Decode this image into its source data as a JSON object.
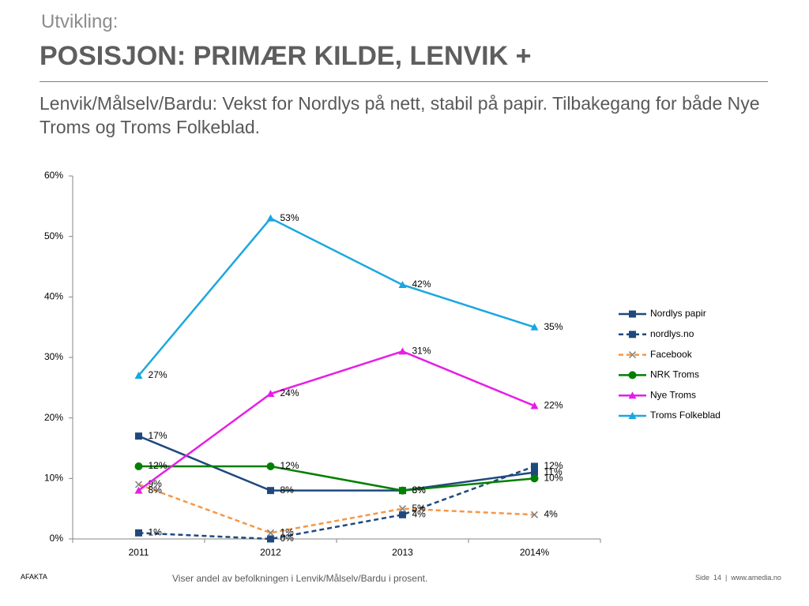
{
  "header": {
    "kicker": "Utvikling:",
    "title": "POSISJON: PRIMÆR KILDE, LENVIK +",
    "subtitle": "Lenvik/Målselv/Bardu: Vekst for Nordlys på nett, stabil på papir. Tilbakegang for både Nye Troms og Troms Folkeblad."
  },
  "chart_data": {
    "type": "line",
    "categories": [
      "2011",
      "2012",
      "2013",
      "2014%"
    ],
    "ylim": [
      0,
      60
    ],
    "yticks": [
      {
        "value": 0,
        "label": "0%"
      },
      {
        "value": 10,
        "label": "10%"
      },
      {
        "value": 20,
        "label": "20%"
      },
      {
        "value": 30,
        "label": "30%"
      },
      {
        "value": 40,
        "label": "40%"
      },
      {
        "value": 50,
        "label": "50%"
      },
      {
        "value": 60,
        "label": "60%"
      }
    ],
    "grid": false,
    "legend": "right",
    "series": [
      {
        "name": "Nordlys papir",
        "color": "#1f497d",
        "dash": false,
        "marker": "square",
        "values": [
          17,
          8,
          8,
          11
        ],
        "value_labels": [
          "17%",
          "8%",
          "8%",
          "11%"
        ]
      },
      {
        "name": "nordlys.no",
        "color": "#1f497d",
        "dash": true,
        "marker": "square",
        "values": [
          1,
          0,
          4,
          12
        ],
        "value_labels": [
          "1%",
          "0%",
          "4%",
          "12%"
        ]
      },
      {
        "name": "Facebook",
        "color": "#f79646",
        "dash": true,
        "marker": "x",
        "marker_color": "#7f7f7f",
        "values": [
          9,
          1,
          5,
          4
        ],
        "value_labels": [
          "9%",
          "1%",
          "5%",
          "4%"
        ]
      },
      {
        "name": "NRK Troms",
        "color": "#008000",
        "dash": false,
        "marker": "circle",
        "values": [
          12,
          12,
          8,
          10
        ],
        "value_labels": [
          "12%",
          "12%",
          "8%",
          "10%"
        ]
      },
      {
        "name": "Nye Troms",
        "color": "#e61ee6",
        "dash": false,
        "marker": "triangle",
        "values": [
          8,
          24,
          31,
          22
        ],
        "value_labels": [
          "8%",
          "24%",
          "31%",
          "22%"
        ]
      },
      {
        "name": "Troms Folkeblad",
        "color": "#1aa7e0",
        "dash": false,
        "marker": "triangle",
        "values": [
          27,
          53,
          42,
          35
        ],
        "value_labels": [
          "27%",
          "53%",
          "42%",
          "35%"
        ]
      }
    ]
  },
  "footer": {
    "source": "AFAKTA",
    "note": "Viser andel av befolkningen i Lenvik/Målselv/Bardu i prosent.",
    "page": "Side  14  |  www.amedia.no"
  }
}
